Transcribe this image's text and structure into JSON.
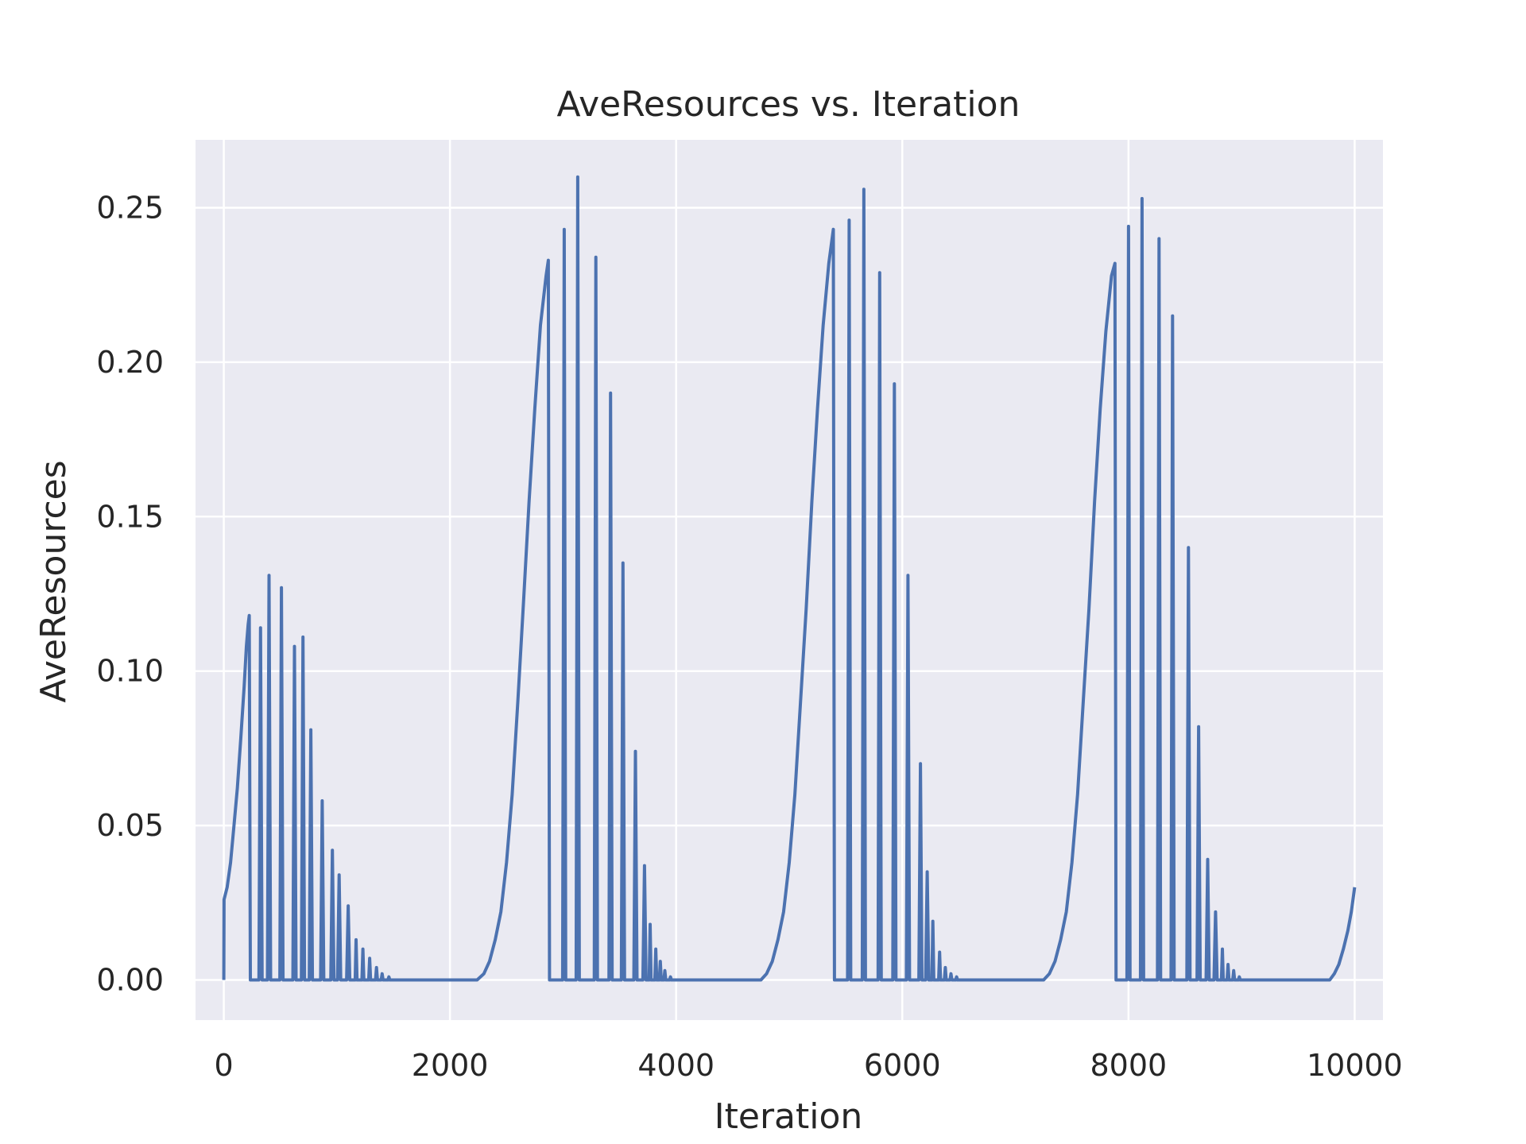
{
  "chart_data": {
    "type": "line",
    "title": "AveResources vs. Iteration",
    "xlabel": "Iteration",
    "ylabel": "AveResources",
    "xlim": [
      -250,
      10250
    ],
    "ylim": [
      -0.013,
      0.272
    ],
    "xticks": [
      0,
      2000,
      4000,
      6000,
      8000,
      10000
    ],
    "xtick_labels": [
      "0",
      "2000",
      "4000",
      "6000",
      "8000",
      "10000"
    ],
    "yticks": [
      0.0,
      0.05,
      0.1,
      0.15,
      0.2,
      0.25
    ],
    "ytick_labels": [
      "0.00",
      "0.05",
      "0.10",
      "0.15",
      "0.20",
      "0.25"
    ],
    "grid": true,
    "background": "#eaeaf2",
    "grid_color": "#ffffff",
    "series": [
      {
        "color": "#4c72b0",
        "cycles": [
          {
            "rise": [
              [
                0,
                0.0
              ],
              [
                2,
                0.026
              ],
              [
                30,
                0.03
              ],
              [
                60,
                0.038
              ],
              [
                90,
                0.05
              ],
              [
                120,
                0.062
              ],
              [
                150,
                0.078
              ],
              [
                180,
                0.095
              ],
              [
                200,
                0.108
              ],
              [
                215,
                0.115
              ],
              [
                225,
                0.118
              ]
            ],
            "tail_start": 235,
            "spikes": [
              [
                325,
                0.114
              ],
              [
                400,
                0.131
              ],
              [
                510,
                0.127
              ],
              [
                625,
                0.108
              ],
              [
                700,
                0.111
              ],
              [
                770,
                0.081
              ],
              [
                870,
                0.058
              ],
              [
                960,
                0.042
              ],
              [
                1020,
                0.034
              ],
              [
                1100,
                0.024
              ],
              [
                1170,
                0.013
              ],
              [
                1230,
                0.01
              ],
              [
                1290,
                0.007
              ],
              [
                1350,
                0.004
              ],
              [
                1400,
                0.002
              ],
              [
                1460,
                0.001
              ]
            ]
          },
          {
            "rise": [
              [
                2240,
                0.0
              ],
              [
                2300,
                0.002
              ],
              [
                2350,
                0.006
              ],
              [
                2400,
                0.013
              ],
              [
                2450,
                0.022
              ],
              [
                2500,
                0.038
              ],
              [
                2550,
                0.06
              ],
              [
                2600,
                0.09
              ],
              [
                2650,
                0.122
              ],
              [
                2700,
                0.155
              ],
              [
                2750,
                0.185
              ],
              [
                2800,
                0.212
              ],
              [
                2850,
                0.228
              ],
              [
                2870,
                0.233
              ]
            ],
            "tail_start": 2880,
            "spikes": [
              [
                3010,
                0.243
              ],
              [
                3130,
                0.26
              ],
              [
                3290,
                0.234
              ],
              [
                3420,
                0.19
              ],
              [
                3530,
                0.135
              ],
              [
                3640,
                0.074
              ],
              [
                3720,
                0.037
              ],
              [
                3770,
                0.018
              ],
              [
                3820,
                0.01
              ],
              [
                3860,
                0.006
              ],
              [
                3900,
                0.003
              ],
              [
                3950,
                0.001
              ]
            ]
          },
          {
            "rise": [
              [
                4750,
                0.0
              ],
              [
                4800,
                0.002
              ],
              [
                4850,
                0.006
              ],
              [
                4900,
                0.013
              ],
              [
                4950,
                0.022
              ],
              [
                5000,
                0.038
              ],
              [
                5050,
                0.06
              ],
              [
                5100,
                0.09
              ],
              [
                5150,
                0.12
              ],
              [
                5200,
                0.155
              ],
              [
                5250,
                0.185
              ],
              [
                5300,
                0.212
              ],
              [
                5350,
                0.232
              ],
              [
                5390,
                0.243
              ]
            ],
            "tail_start": 5400,
            "spikes": [
              [
                5530,
                0.246
              ],
              [
                5660,
                0.256
              ],
              [
                5800,
                0.229
              ],
              [
                5930,
                0.193
              ],
              [
                6050,
                0.131
              ],
              [
                6160,
                0.07
              ],
              [
                6220,
                0.035
              ],
              [
                6270,
                0.019
              ],
              [
                6330,
                0.009
              ],
              [
                6380,
                0.004
              ],
              [
                6430,
                0.002
              ],
              [
                6480,
                0.001
              ]
            ]
          },
          {
            "rise": [
              [
                7250,
                0.0
              ],
              [
                7300,
                0.002
              ],
              [
                7350,
                0.006
              ],
              [
                7400,
                0.013
              ],
              [
                7450,
                0.022
              ],
              [
                7500,
                0.038
              ],
              [
                7550,
                0.06
              ],
              [
                7600,
                0.09
              ],
              [
                7650,
                0.12
              ],
              [
                7700,
                0.155
              ],
              [
                7750,
                0.185
              ],
              [
                7800,
                0.21
              ],
              [
                7850,
                0.228
              ],
              [
                7880,
                0.232
              ]
            ],
            "tail_start": 7890,
            "spikes": [
              [
                8000,
                0.244
              ],
              [
                8120,
                0.253
              ],
              [
                8270,
                0.24
              ],
              [
                8390,
                0.215
              ],
              [
                8530,
                0.14
              ],
              [
                8620,
                0.082
              ],
              [
                8700,
                0.039
              ],
              [
                8770,
                0.022
              ],
              [
                8830,
                0.01
              ],
              [
                8880,
                0.005
              ],
              [
                8930,
                0.003
              ],
              [
                8980,
                0.001
              ]
            ]
          }
        ],
        "final_rise": [
          [
            9780,
            0.0
          ],
          [
            9820,
            0.002
          ],
          [
            9860,
            0.005
          ],
          [
            9900,
            0.01
          ],
          [
            9940,
            0.016
          ],
          [
            9970,
            0.022
          ],
          [
            10000,
            0.03
          ]
        ]
      }
    ]
  }
}
